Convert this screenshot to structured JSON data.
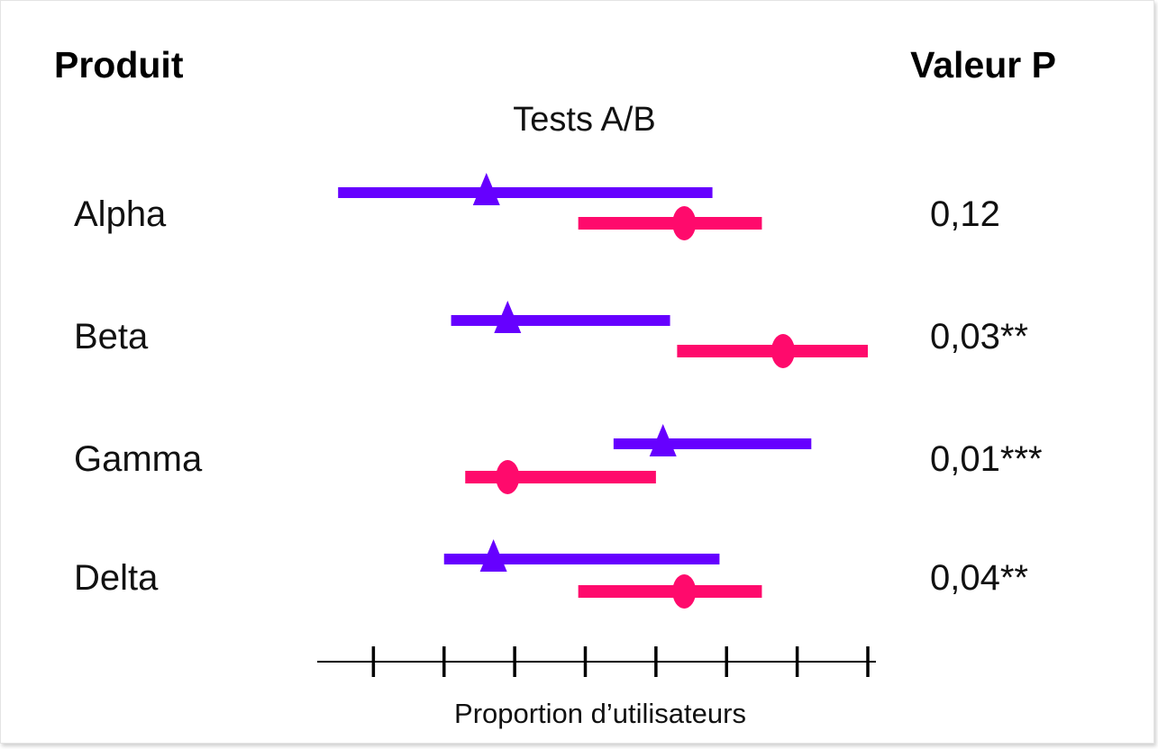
{
  "header": {
    "left": "Produit",
    "right": "Valeur P"
  },
  "chart_data": {
    "type": "forest",
    "title": "Tests A/B",
    "xlabel": "Proportion d’utilisateurs",
    "xlim": [
      0,
      8
    ],
    "x_ticks": [
      1,
      2,
      3,
      4,
      5,
      6,
      7,
      8
    ],
    "x_tick_labels": [],
    "categories": [
      "Alpha",
      "Beta",
      "Gamma",
      "Delta"
    ],
    "p_values": [
      "0,12",
      "0,03**",
      "0,01***",
      "0,04**"
    ],
    "series": [
      {
        "marker": "triangle",
        "color": "#6600ff",
        "points": [
          {
            "low": 0.5,
            "estimate": 2.6,
            "high": 5.8
          },
          {
            "low": 2.1,
            "estimate": 2.9,
            "high": 5.2
          },
          {
            "low": 4.4,
            "estimate": 5.1,
            "high": 7.2
          },
          {
            "low": 2.0,
            "estimate": 2.7,
            "high": 5.9
          }
        ]
      },
      {
        "marker": "circle",
        "color": "#ff0a6c",
        "points": [
          {
            "low": 3.9,
            "estimate": 5.4,
            "high": 6.5
          },
          {
            "low": 5.3,
            "estimate": 6.8,
            "high": 8.0
          },
          {
            "low": 2.3,
            "estimate": 2.9,
            "high": 5.0
          },
          {
            "low": 3.9,
            "estimate": 5.4,
            "high": 6.5
          }
        ]
      }
    ]
  }
}
